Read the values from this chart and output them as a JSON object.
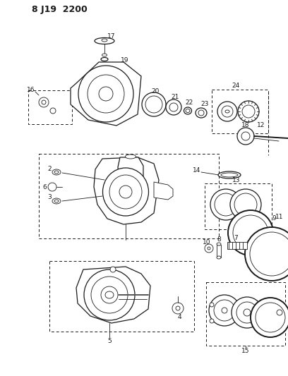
{
  "title": "8 J19  2200",
  "bg_color": "#ffffff",
  "fg_color": "#1a1a1a",
  "fig_width": 4.08,
  "fig_height": 5.33,
  "dpi": 100,
  "lw_thin": 0.6,
  "lw_med": 0.9,
  "lw_thick": 1.4,
  "lw_dash": 0.7
}
